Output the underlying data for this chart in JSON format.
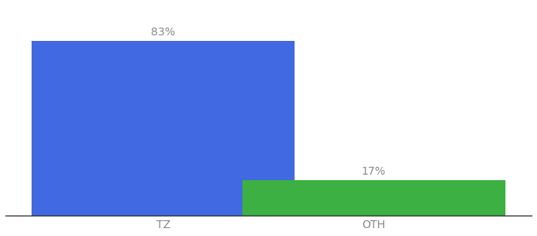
{
  "categories": [
    "TZ",
    "OTH"
  ],
  "values": [
    83,
    17
  ],
  "labels": [
    "83%",
    "17%"
  ],
  "bar_colors": [
    "#4169E1",
    "#3CB043"
  ],
  "background_color": "#ffffff",
  "bar_width": 0.5,
  "bar_positions": [
    0.3,
    0.7
  ],
  "xlim": [
    0,
    1.0
  ],
  "ylim": [
    0,
    100
  ],
  "label_fontsize": 10,
  "tick_fontsize": 10,
  "label_color": "#888888",
  "tick_color": "#888888",
  "spine_color": "#333333"
}
